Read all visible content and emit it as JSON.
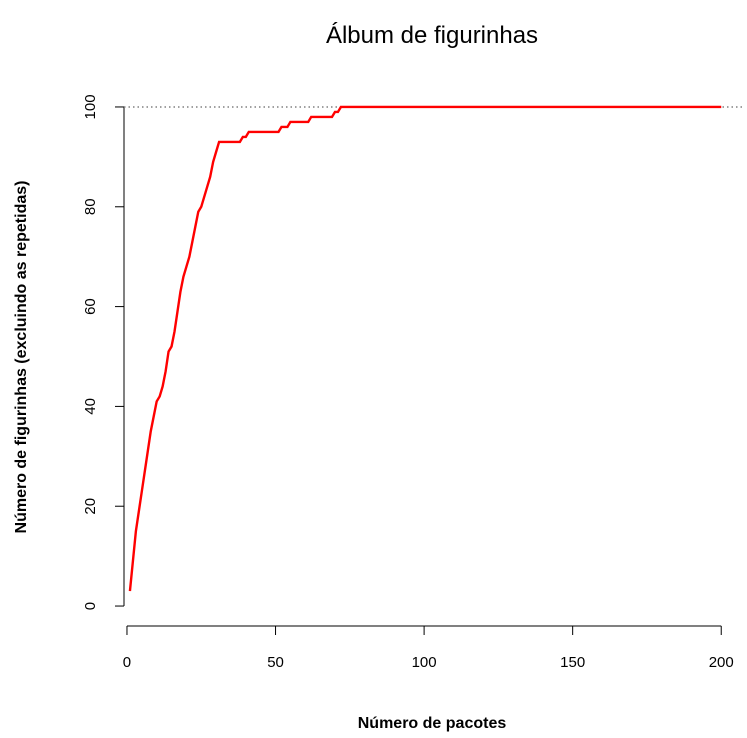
{
  "chart_data": {
    "type": "line",
    "title": "Álbum de figurinhas",
    "xlabel": "Número de pacotes",
    "ylabel": "Número de figurinhas (excluindo as repetidas)",
    "xlim": [
      -1,
      208
    ],
    "ylim": [
      -4,
      104
    ],
    "xticks": [
      0,
      50,
      100,
      150,
      200
    ],
    "yticks": [
      0,
      20,
      40,
      60,
      80,
      100
    ],
    "grid": false,
    "reference_line": {
      "y": 100,
      "style": "dotted",
      "color": "#808080"
    },
    "series": [
      {
        "color": "#ff0000",
        "x": [
          1,
          2,
          3,
          4,
          5,
          6,
          7,
          8,
          9,
          10,
          11,
          12,
          13,
          14,
          15,
          16,
          17,
          18,
          19,
          20,
          21,
          22,
          23,
          24,
          25,
          26,
          27,
          28,
          29,
          30,
          31,
          32,
          33,
          34,
          35,
          36,
          37,
          38,
          39,
          40,
          41,
          42,
          43,
          44,
          45,
          46,
          47,
          48,
          49,
          50,
          51,
          52,
          53,
          54,
          55,
          56,
          57,
          58,
          59,
          60,
          61,
          62,
          63,
          64,
          65,
          66,
          67,
          68,
          69,
          70,
          71,
          72,
          73,
          74,
          75,
          76,
          77,
          78,
          200
        ],
        "y": [
          3,
          9,
          15,
          19,
          23,
          27,
          31,
          35,
          38,
          41,
          42,
          44,
          47,
          51,
          52,
          55,
          59,
          63,
          66,
          68,
          70,
          73,
          76,
          79,
          80,
          82,
          84,
          86,
          89,
          91,
          93,
          93,
          93,
          93,
          93,
          93,
          93,
          93,
          94,
          94,
          95,
          95,
          95,
          95,
          95,
          95,
          95,
          95,
          95,
          95,
          95,
          96,
          96,
          96,
          97,
          97,
          97,
          97,
          97,
          97,
          97,
          98,
          98,
          98,
          98,
          98,
          98,
          98,
          98,
          99,
          99,
          100,
          100,
          100,
          100,
          100,
          100,
          100,
          100
        ]
      }
    ]
  }
}
